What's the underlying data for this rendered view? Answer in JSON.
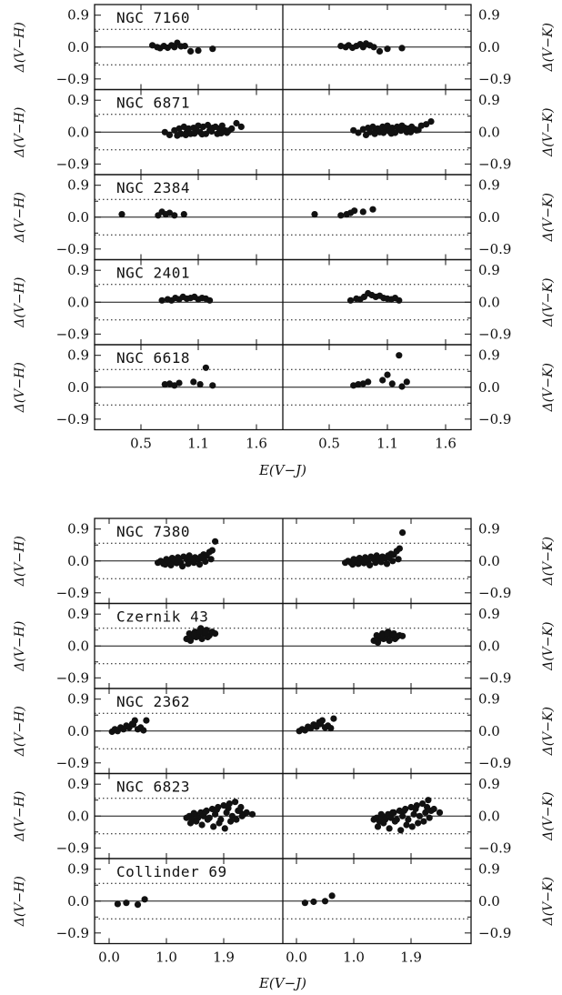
{
  "chart_data": [
    {
      "type": "scatter",
      "x_label": "E(V−J)",
      "x_tick_labels": [
        "0.5",
        "1.1",
        "1.6"
      ],
      "xlim": [
        0.05,
        1.9
      ],
      "ylim": [
        -1.2,
        1.2
      ],
      "y_tick_labels": [
        "0.9",
        "0.0",
        "−0.9"
      ],
      "reference_lines": {
        "solid": 0.0,
        "dotted": [
          0.5,
          -0.5
        ]
      },
      "left_ylabel": "Δ(V−H)",
      "right_ylabel": "Δ(V−K)",
      "panels": [
        {
          "cluster": "NGC 7160",
          "left_x": [
            0.62,
            0.67,
            0.7,
            0.74,
            0.78,
            0.82,
            0.85,
            0.88,
            0.92,
            0.96,
            1.02,
            1.1,
            1.25
          ],
          "left_y": [
            0.05,
            0.0,
            -0.03,
            0.03,
            -0.02,
            0.05,
            0.0,
            0.12,
            0.02,
            0.03,
            -0.12,
            -0.1,
            -0.05
          ],
          "right_x": [
            0.62,
            0.67,
            0.7,
            0.74,
            0.78,
            0.82,
            0.85,
            0.88,
            0.92,
            0.96,
            1.02,
            1.1,
            1.25
          ],
          "right_y": [
            0.03,
            0.0,
            0.05,
            -0.02,
            0.03,
            0.08,
            0.0,
            0.1,
            0.05,
            0.0,
            -0.12,
            -0.05,
            -0.03
          ]
        },
        {
          "cluster": "NGC 6871",
          "left_x": [
            0.75,
            0.8,
            0.85,
            0.9,
            0.92,
            0.95,
            0.98,
            1.0,
            1.02,
            1.05,
            1.08,
            1.1,
            1.12,
            1.15,
            1.18,
            1.2,
            1.22,
            1.25,
            1.28,
            1.3,
            1.32,
            1.35,
            1.38,
            1.4,
            1.45,
            1.5,
            1.55,
            0.88,
            0.97,
            1.06,
            1.14,
            1.24,
            1.34,
            1.42
          ],
          "left_y": [
            0.0,
            -0.08,
            0.05,
            0.1,
            -0.05,
            0.15,
            0.0,
            0.1,
            -0.05,
            0.12,
            0.05,
            0.18,
            0.0,
            0.15,
            -0.05,
            0.2,
            0.05,
            0.12,
            0.15,
            -0.05,
            0.1,
            0.18,
            0.05,
            -0.02,
            0.1,
            0.25,
            0.15,
            -0.1,
            -0.08,
            -0.04,
            -0.06,
            0.02,
            -0.03,
            0.04
          ],
          "right_x": [
            0.75,
            0.8,
            0.85,
            0.9,
            0.92,
            0.95,
            0.98,
            1.0,
            1.02,
            1.05,
            1.08,
            1.1,
            1.12,
            1.15,
            1.18,
            1.2,
            1.22,
            1.25,
            1.28,
            1.3,
            1.32,
            1.35,
            1.38,
            1.4,
            1.45,
            1.5,
            1.55,
            0.88,
            0.97,
            1.06,
            1.14,
            1.24,
            1.34,
            1.42
          ],
          "right_y": [
            0.05,
            -0.02,
            0.08,
            0.12,
            0.0,
            0.15,
            0.05,
            0.1,
            0.0,
            0.15,
            0.08,
            0.18,
            0.02,
            0.12,
            -0.02,
            0.15,
            0.08,
            0.18,
            0.12,
            0.0,
            0.1,
            0.15,
            0.08,
            0.05,
            0.18,
            0.22,
            0.3,
            -0.08,
            -0.05,
            -0.02,
            -0.04,
            0.04,
            0.0,
            0.06
          ]
        },
        {
          "cluster": "NGC 2384",
          "left_x": [
            0.3,
            0.68,
            0.72,
            0.76,
            0.8,
            0.85,
            0.95
          ],
          "left_y": [
            0.08,
            0.05,
            0.15,
            0.08,
            0.12,
            0.05,
            0.08
          ],
          "right_x": [
            0.35,
            0.62,
            0.68,
            0.72,
            0.76,
            0.85,
            0.95
          ],
          "right_y": [
            0.08,
            0.05,
            0.08,
            0.12,
            0.18,
            0.15,
            0.22
          ]
        },
        {
          "cluster": "NGC 2401",
          "left_x": [
            0.72,
            0.78,
            0.82,
            0.86,
            0.9,
            0.94,
            0.98,
            1.02,
            1.06,
            1.1,
            1.14,
            1.18,
            1.22
          ],
          "left_y": [
            0.05,
            0.08,
            0.05,
            0.12,
            0.08,
            0.15,
            0.1,
            0.12,
            0.15,
            0.08,
            0.12,
            0.1,
            0.05
          ],
          "right_x": [
            0.72,
            0.78,
            0.82,
            0.86,
            0.9,
            0.94,
            0.98,
            1.02,
            1.06,
            1.1,
            1.14,
            1.18,
            1.22
          ],
          "right_y": [
            0.05,
            0.1,
            0.08,
            0.15,
            0.25,
            0.2,
            0.15,
            0.18,
            0.12,
            0.1,
            0.08,
            0.12,
            0.05
          ]
        },
        {
          "cluster": "NGC 6618",
          "left_x": [
            0.75,
            0.8,
            0.85,
            0.9,
            1.05,
            1.12,
            1.18,
            1.25
          ],
          "left_y": [
            0.08,
            0.1,
            0.05,
            0.12,
            0.15,
            0.08,
            0.55,
            0.05
          ],
          "right_x": [
            0.75,
            0.8,
            0.85,
            0.9,
            1.05,
            1.1,
            1.15,
            1.22,
            1.25,
            1.3
          ],
          "right_y": [
            0.05,
            0.08,
            0.1,
            0.15,
            0.2,
            0.35,
            0.1,
            0.9,
            0.02,
            0.15
          ]
        }
      ]
    },
    {
      "type": "scatter",
      "x_label": "E(V−J)",
      "x_tick_labels": [
        "0.0",
        "1.0",
        "1.9"
      ],
      "xlim": [
        -0.25,
        2.9
      ],
      "ylim": [
        -1.2,
        1.2
      ],
      "y_tick_labels": [
        "0.9",
        "0.0",
        "−0.9"
      ],
      "reference_lines": {
        "solid": 0.0,
        "dotted": [
          0.5,
          -0.5
        ]
      },
      "left_ylabel": "Δ(V−H)",
      "right_ylabel": "Δ(V−K)",
      "panels": [
        {
          "cluster": "NGC 7380",
          "left_x": [
            0.85,
            0.9,
            0.95,
            1.0,
            1.05,
            1.1,
            1.15,
            1.2,
            1.25,
            1.3,
            1.35,
            1.4,
            1.45,
            1.5,
            1.55,
            1.6,
            1.65,
            1.7,
            1.75,
            1.8,
            1.85,
            0.98,
            1.08,
            1.18,
            1.28,
            1.38,
            1.48,
            1.58,
            1.68,
            1.78,
            1.02,
            1.22,
            1.42,
            1.62
          ],
          "left_y": [
            -0.05,
            0.0,
            -0.08,
            0.05,
            -0.03,
            0.08,
            0.0,
            0.1,
            -0.05,
            0.12,
            0.05,
            0.15,
            0.0,
            0.1,
            0.05,
            0.12,
            0.18,
            0.15,
            0.25,
            0.3,
            0.55,
            -0.1,
            -0.12,
            -0.06,
            -0.15,
            -0.08,
            -0.05,
            -0.1,
            -0.02,
            0.05,
            0.02,
            0.04,
            0.06,
            0.08
          ],
          "right_x": [
            0.85,
            0.9,
            0.95,
            1.0,
            1.05,
            1.1,
            1.15,
            1.2,
            1.25,
            1.3,
            1.35,
            1.4,
            1.45,
            1.5,
            1.55,
            1.6,
            1.65,
            1.7,
            1.75,
            1.8,
            1.85,
            0.98,
            1.08,
            1.18,
            1.28,
            1.38,
            1.48,
            1.58,
            1.68,
            1.78,
            1.02,
            1.22,
            1.42,
            1.62
          ],
          "right_y": [
            -0.05,
            0.0,
            -0.05,
            0.05,
            -0.02,
            0.08,
            0.02,
            0.1,
            -0.03,
            0.12,
            0.05,
            0.15,
            0.02,
            0.12,
            0.08,
            0.15,
            0.2,
            0.18,
            0.28,
            0.35,
            0.8,
            -0.1,
            -0.08,
            -0.06,
            -0.12,
            -0.05,
            -0.03,
            -0.08,
            0.0,
            0.05,
            0.03,
            0.05,
            0.08,
            0.1
          ]
        },
        {
          "cluster": "Czernik 43",
          "left_x": [
            1.35,
            1.4,
            1.45,
            1.5,
            1.55,
            1.6,
            1.65,
            1.7,
            1.75,
            1.8,
            1.85,
            1.42,
            1.52,
            1.62,
            1.72,
            1.58,
            1.68,
            1.48
          ],
          "left_y": [
            0.2,
            0.35,
            0.25,
            0.4,
            0.3,
            0.5,
            0.35,
            0.45,
            0.3,
            0.4,
            0.35,
            0.15,
            0.25,
            0.2,
            0.25,
            0.42,
            0.38,
            0.32
          ],
          "right_x": [
            1.35,
            1.4,
            1.45,
            1.5,
            1.55,
            1.6,
            1.65,
            1.7,
            1.75,
            1.8,
            1.85,
            1.42,
            1.52,
            1.62,
            1.72,
            1.58,
            1.68,
            1.48
          ],
          "right_y": [
            0.15,
            0.3,
            0.2,
            0.35,
            0.25,
            0.4,
            0.3,
            0.35,
            0.25,
            0.3,
            0.28,
            0.1,
            0.2,
            0.15,
            0.2,
            0.36,
            0.34,
            0.28
          ]
        },
        {
          "cluster": "NGC 2362",
          "left_x": [
            0.05,
            0.1,
            0.15,
            0.2,
            0.25,
            0.3,
            0.35,
            0.4,
            0.45,
            0.5,
            0.55,
            0.6,
            0.65,
            0.42
          ],
          "left_y": [
            -0.02,
            0.05,
            0.0,
            0.1,
            0.05,
            0.15,
            0.1,
            0.2,
            0.3,
            0.05,
            0.1,
            0.02,
            0.3,
            0.18
          ],
          "right_x": [
            0.05,
            0.1,
            0.15,
            0.2,
            0.25,
            0.3,
            0.35,
            0.4,
            0.45,
            0.5,
            0.55,
            0.6,
            0.65,
            0.42
          ],
          "right_y": [
            0.0,
            0.05,
            0.02,
            0.12,
            0.08,
            0.18,
            0.12,
            0.25,
            0.3,
            0.1,
            0.15,
            0.08,
            0.35,
            0.2
          ]
        },
        {
          "cluster": "NGC 6823",
          "left_x": [
            1.35,
            1.4,
            1.45,
            1.5,
            1.55,
            1.6,
            1.65,
            1.7,
            1.75,
            1.8,
            1.85,
            1.9,
            1.95,
            2.0,
            2.05,
            2.1,
            2.15,
            2.2,
            2.25,
            2.3,
            2.35,
            2.4,
            2.5,
            1.42,
            1.52,
            1.62,
            1.72,
            1.82,
            1.92,
            2.02,
            2.12,
            2.22,
            2.32,
            1.48,
            1.68,
            1.88,
            2.08,
            2.28
          ],
          "left_y": [
            -0.05,
            0.0,
            -0.1,
            0.05,
            -0.05,
            0.1,
            0.0,
            0.15,
            -0.05,
            0.2,
            0.05,
            0.25,
            -0.1,
            0.3,
            0.1,
            0.35,
            0.0,
            0.4,
            0.15,
            0.25,
            0.05,
            0.1,
            0.05,
            -0.2,
            -0.15,
            -0.25,
            -0.1,
            -0.3,
            -0.2,
            -0.35,
            -0.15,
            -0.1,
            0.0,
            0.08,
            0.12,
            0.18,
            0.22,
            0.15
          ],
          "right_x": [
            1.35,
            1.4,
            1.45,
            1.5,
            1.55,
            1.6,
            1.65,
            1.7,
            1.75,
            1.8,
            1.85,
            1.9,
            1.95,
            2.0,
            2.05,
            2.1,
            2.15,
            2.2,
            2.25,
            2.3,
            2.35,
            2.4,
            2.5,
            1.42,
            1.52,
            1.62,
            1.72,
            1.82,
            1.92,
            2.02,
            2.12,
            2.22,
            2.32,
            1.48,
            1.68,
            1.88,
            2.08,
            2.28
          ],
          "right_y": [
            -0.1,
            -0.05,
            -0.15,
            0.0,
            -0.1,
            0.05,
            -0.05,
            0.1,
            -0.1,
            0.15,
            0.0,
            0.2,
            -0.1,
            0.25,
            0.05,
            0.3,
            0.0,
            0.35,
            0.1,
            0.45,
            0.15,
            0.2,
            0.1,
            -0.3,
            -0.2,
            -0.35,
            -0.15,
            -0.4,
            -0.25,
            -0.3,
            -0.2,
            -0.15,
            -0.05,
            0.05,
            0.1,
            0.15,
            0.2,
            0.25
          ]
        },
        {
          "cluster": "Collinder 69",
          "left_x": [
            0.15,
            0.3,
            0.5,
            0.62
          ],
          "left_y": [
            -0.08,
            -0.05,
            -0.1,
            0.05
          ],
          "right_x": [
            0.15,
            0.3,
            0.5,
            0.62
          ],
          "right_y": [
            -0.05,
            -0.02,
            0.0,
            0.15
          ]
        }
      ]
    }
  ]
}
